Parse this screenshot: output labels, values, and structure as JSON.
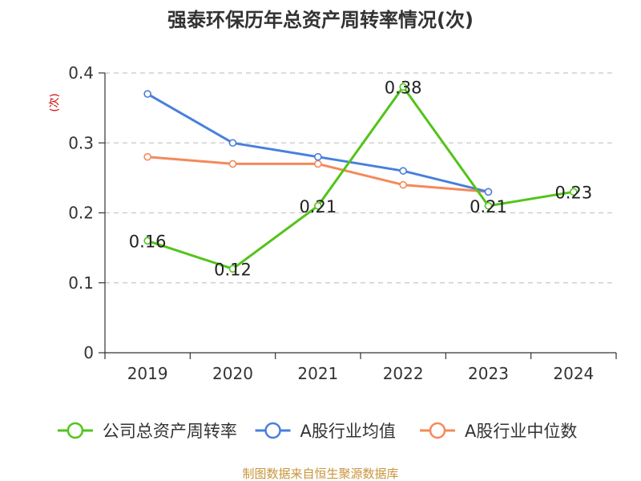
{
  "chart_data": {
    "type": "line",
    "title": "强泰环保历年总资产周转率情况(次)",
    "ylabel": "(次)",
    "xlabel": "",
    "categories": [
      "2019",
      "2020",
      "2021",
      "2022",
      "2023",
      "2024"
    ],
    "ylim": [
      0,
      0.4
    ],
    "yticks": [
      0,
      0.1,
      0.2,
      0.3,
      0.4
    ],
    "ytick_labels": [
      "0",
      "0.1",
      "0.2",
      "0.3",
      "0.4"
    ],
    "grid": true,
    "legend_position": "bottom",
    "series": [
      {
        "name": "公司总资产周转率",
        "color": "#52c41a",
        "values": [
          0.16,
          0.12,
          0.21,
          0.38,
          0.21,
          0.23
        ],
        "labels": [
          "0.16",
          "0.12",
          "0.21",
          "0.38",
          "0.21",
          "0.23"
        ]
      },
      {
        "name": "A股行业均值",
        "color": "#4a7fdc",
        "values": [
          0.37,
          0.3,
          0.28,
          0.26,
          0.23,
          null
        ]
      },
      {
        "name": "A股行业中位数",
        "color": "#f5895a",
        "values": [
          0.28,
          0.27,
          0.27,
          0.24,
          0.23,
          null
        ]
      }
    ]
  },
  "source": "制图数据来自恒生聚源数据库"
}
